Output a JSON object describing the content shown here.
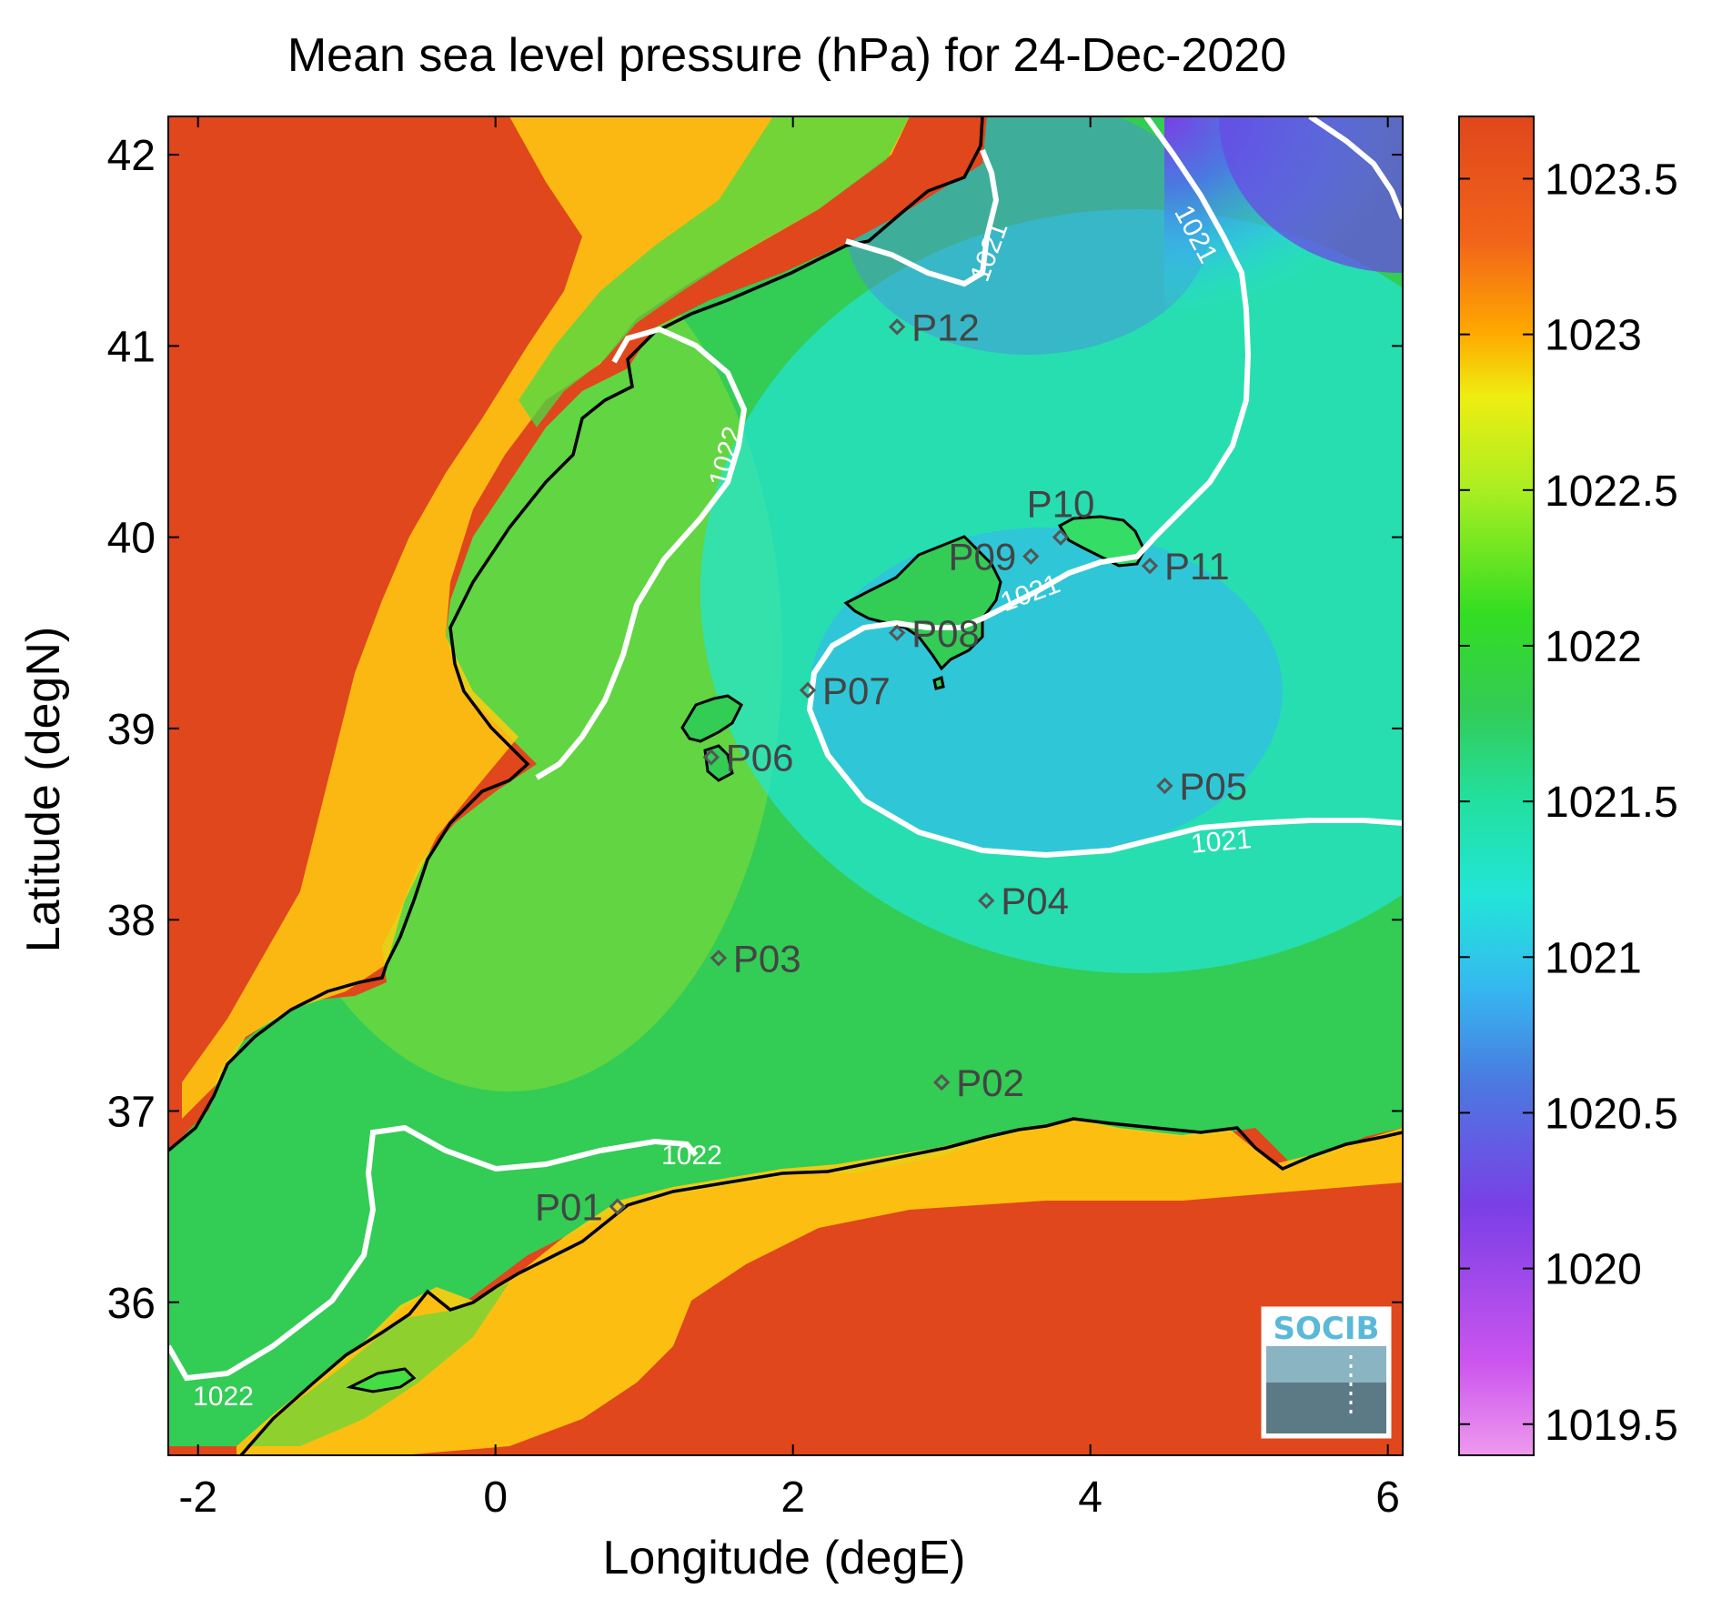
{
  "title": "Mean sea level pressure (hPa) for 24-Dec-2020",
  "colors": {
    "land": "#e0471c",
    "coast_line": "#000000",
    "contour": "#ffffff",
    "station_marker": "#555555",
    "station_label": "#444444",
    "frame": "#000000"
  },
  "map": {
    "lon_range": [
      -2.2,
      6.1
    ],
    "lat_range": [
      35.2,
      42.2
    ],
    "xlabel": "Longitude (degE)",
    "ylabel": "Latitude (degN)",
    "x_ticks": [
      {
        "value": -2,
        "label": "-2"
      },
      {
        "value": 0,
        "label": "0"
      },
      {
        "value": 2,
        "label": "2"
      },
      {
        "value": 4,
        "label": "4"
      },
      {
        "value": 6,
        "label": "6"
      }
    ],
    "y_ticks": [
      {
        "value": 36,
        "label": "36"
      },
      {
        "value": 37,
        "label": "37"
      },
      {
        "value": 38,
        "label": "38"
      },
      {
        "value": 39,
        "label": "39"
      },
      {
        "value": 40,
        "label": "40"
      },
      {
        "value": 41,
        "label": "41"
      },
      {
        "value": 42,
        "label": "42"
      }
    ],
    "contour_labels": [
      {
        "text": "1021",
        "lon": 3.33,
        "lat": 41.49,
        "angle": -70
      },
      {
        "text": "1021",
        "lon": 4.7,
        "lat": 41.58,
        "angle": 62
      },
      {
        "text": "1022",
        "lon": 1.56,
        "lat": 40.42,
        "angle": -75
      },
      {
        "text": "1021",
        "lon": 3.6,
        "lat": 39.7,
        "angle": -20
      },
      {
        "text": "1021",
        "lon": 4.88,
        "lat": 38.4,
        "angle": -5
      },
      {
        "text": "1022",
        "lon": 1.32,
        "lat": 36.76,
        "angle": 0
      },
      {
        "text": "1022",
        "lon": -1.83,
        "lat": 35.5,
        "angle": 0
      }
    ],
    "logo_text": "SOCIB"
  },
  "stations": [
    {
      "name": "P01",
      "lon": 0.82,
      "lat": 36.5,
      "label_side": "left"
    },
    {
      "name": "P02",
      "lon": 3.0,
      "lat": 37.15,
      "label_side": "right"
    },
    {
      "name": "P03",
      "lon": 1.5,
      "lat": 37.8,
      "label_side": "right"
    },
    {
      "name": "P04",
      "lon": 3.3,
      "lat": 38.1,
      "label_side": "right"
    },
    {
      "name": "P05",
      "lon": 4.5,
      "lat": 38.7,
      "label_side": "right"
    },
    {
      "name": "P06",
      "lon": 1.45,
      "lat": 38.85,
      "label_side": "right"
    },
    {
      "name": "P07",
      "lon": 2.1,
      "lat": 39.2,
      "label_side": "right"
    },
    {
      "name": "P08",
      "lon": 2.7,
      "lat": 39.5,
      "label_side": "right"
    },
    {
      "name": "P09",
      "lon": 3.6,
      "lat": 39.9,
      "label_side": "left"
    },
    {
      "name": "P10",
      "lon": 3.8,
      "lat": 40.0,
      "label_side": "above"
    },
    {
      "name": "P11",
      "lon": 4.4,
      "lat": 39.85,
      "label_side": "right"
    },
    {
      "name": "P12",
      "lon": 2.7,
      "lat": 41.1,
      "label_side": "right"
    }
  ],
  "colorbar": {
    "range": [
      1019.4,
      1023.7
    ],
    "ticks": [
      {
        "value": 1019.5,
        "label": "1019.5"
      },
      {
        "value": 1020,
        "label": "1020"
      },
      {
        "value": 1020.5,
        "label": "1020.5"
      },
      {
        "value": 1021,
        "label": "1021"
      },
      {
        "value": 1021.5,
        "label": "1021.5"
      },
      {
        "value": 1022,
        "label": "1022"
      },
      {
        "value": 1022.5,
        "label": "1022.5"
      },
      {
        "value": 1023,
        "label": "1023"
      },
      {
        "value": 1023.5,
        "label": "1023.5"
      }
    ],
    "stops": [
      {
        "value": 1019.4,
        "color": "#ee99ee"
      },
      {
        "value": 1019.7,
        "color": "#cc55ee"
      },
      {
        "value": 1020.2,
        "color": "#7a3fe6"
      },
      {
        "value": 1020.6,
        "color": "#4a7ae0"
      },
      {
        "value": 1020.9,
        "color": "#35b8f0"
      },
      {
        "value": 1021.2,
        "color": "#22e5d8"
      },
      {
        "value": 1021.5,
        "color": "#22e0a0"
      },
      {
        "value": 1021.8,
        "color": "#33cc55"
      },
      {
        "value": 1022.1,
        "color": "#33dd22"
      },
      {
        "value": 1022.5,
        "color": "#aaee22"
      },
      {
        "value": 1022.8,
        "color": "#eeee11"
      },
      {
        "value": 1023.0,
        "color": "#ffaa00"
      },
      {
        "value": 1023.3,
        "color": "#f2641a"
      },
      {
        "value": 1023.7,
        "color": "#e0471c"
      }
    ]
  }
}
